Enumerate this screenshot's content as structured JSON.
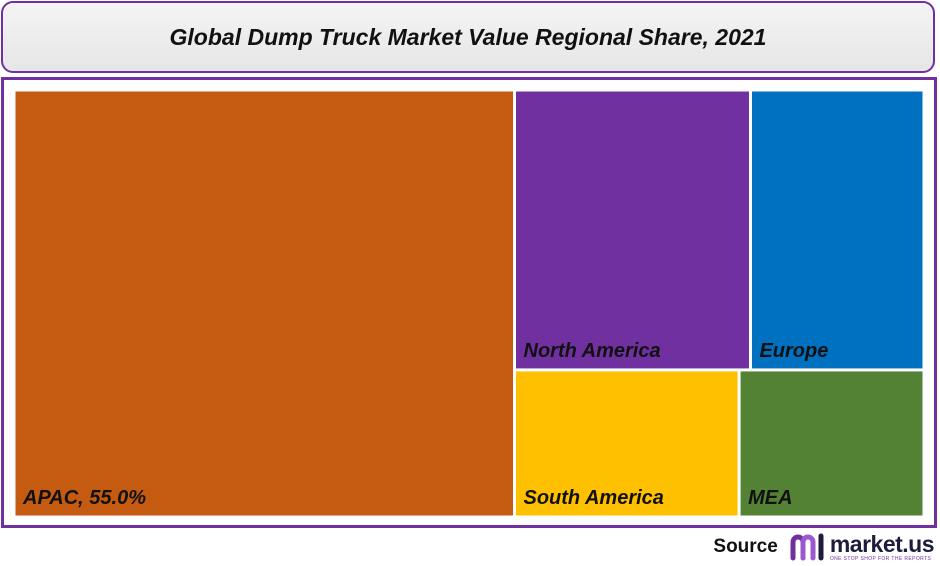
{
  "title": "Global Dump Truck Market Value Regional Share, 2021",
  "source": {
    "label": "Source",
    "logo_name": "market.us",
    "logo_tagline": "ONE STOP SHOP FOR THE REPORTS"
  },
  "colors": {
    "border": "#7030a0",
    "APAC": "#c55a11",
    "North America": "#7030a0",
    "Europe": "#0070c0",
    "South America": "#ffc000",
    "MEA": "#548235"
  },
  "chart_data": {
    "type": "treemap",
    "title": "Global Dump Truck Market Value Regional Share, 2021",
    "unit": "%",
    "items": [
      {
        "name": "APAC",
        "label": "APAC, 55.0%",
        "value": 55.0
      },
      {
        "name": "North America",
        "label": "North America",
        "value": 17.0
      },
      {
        "name": "Europe",
        "label": "Europe",
        "value": 12.5
      },
      {
        "name": "South America",
        "label": "South America",
        "value": 8.5
      },
      {
        "name": "MEA",
        "label": "MEA",
        "value": 7.0
      }
    ]
  }
}
